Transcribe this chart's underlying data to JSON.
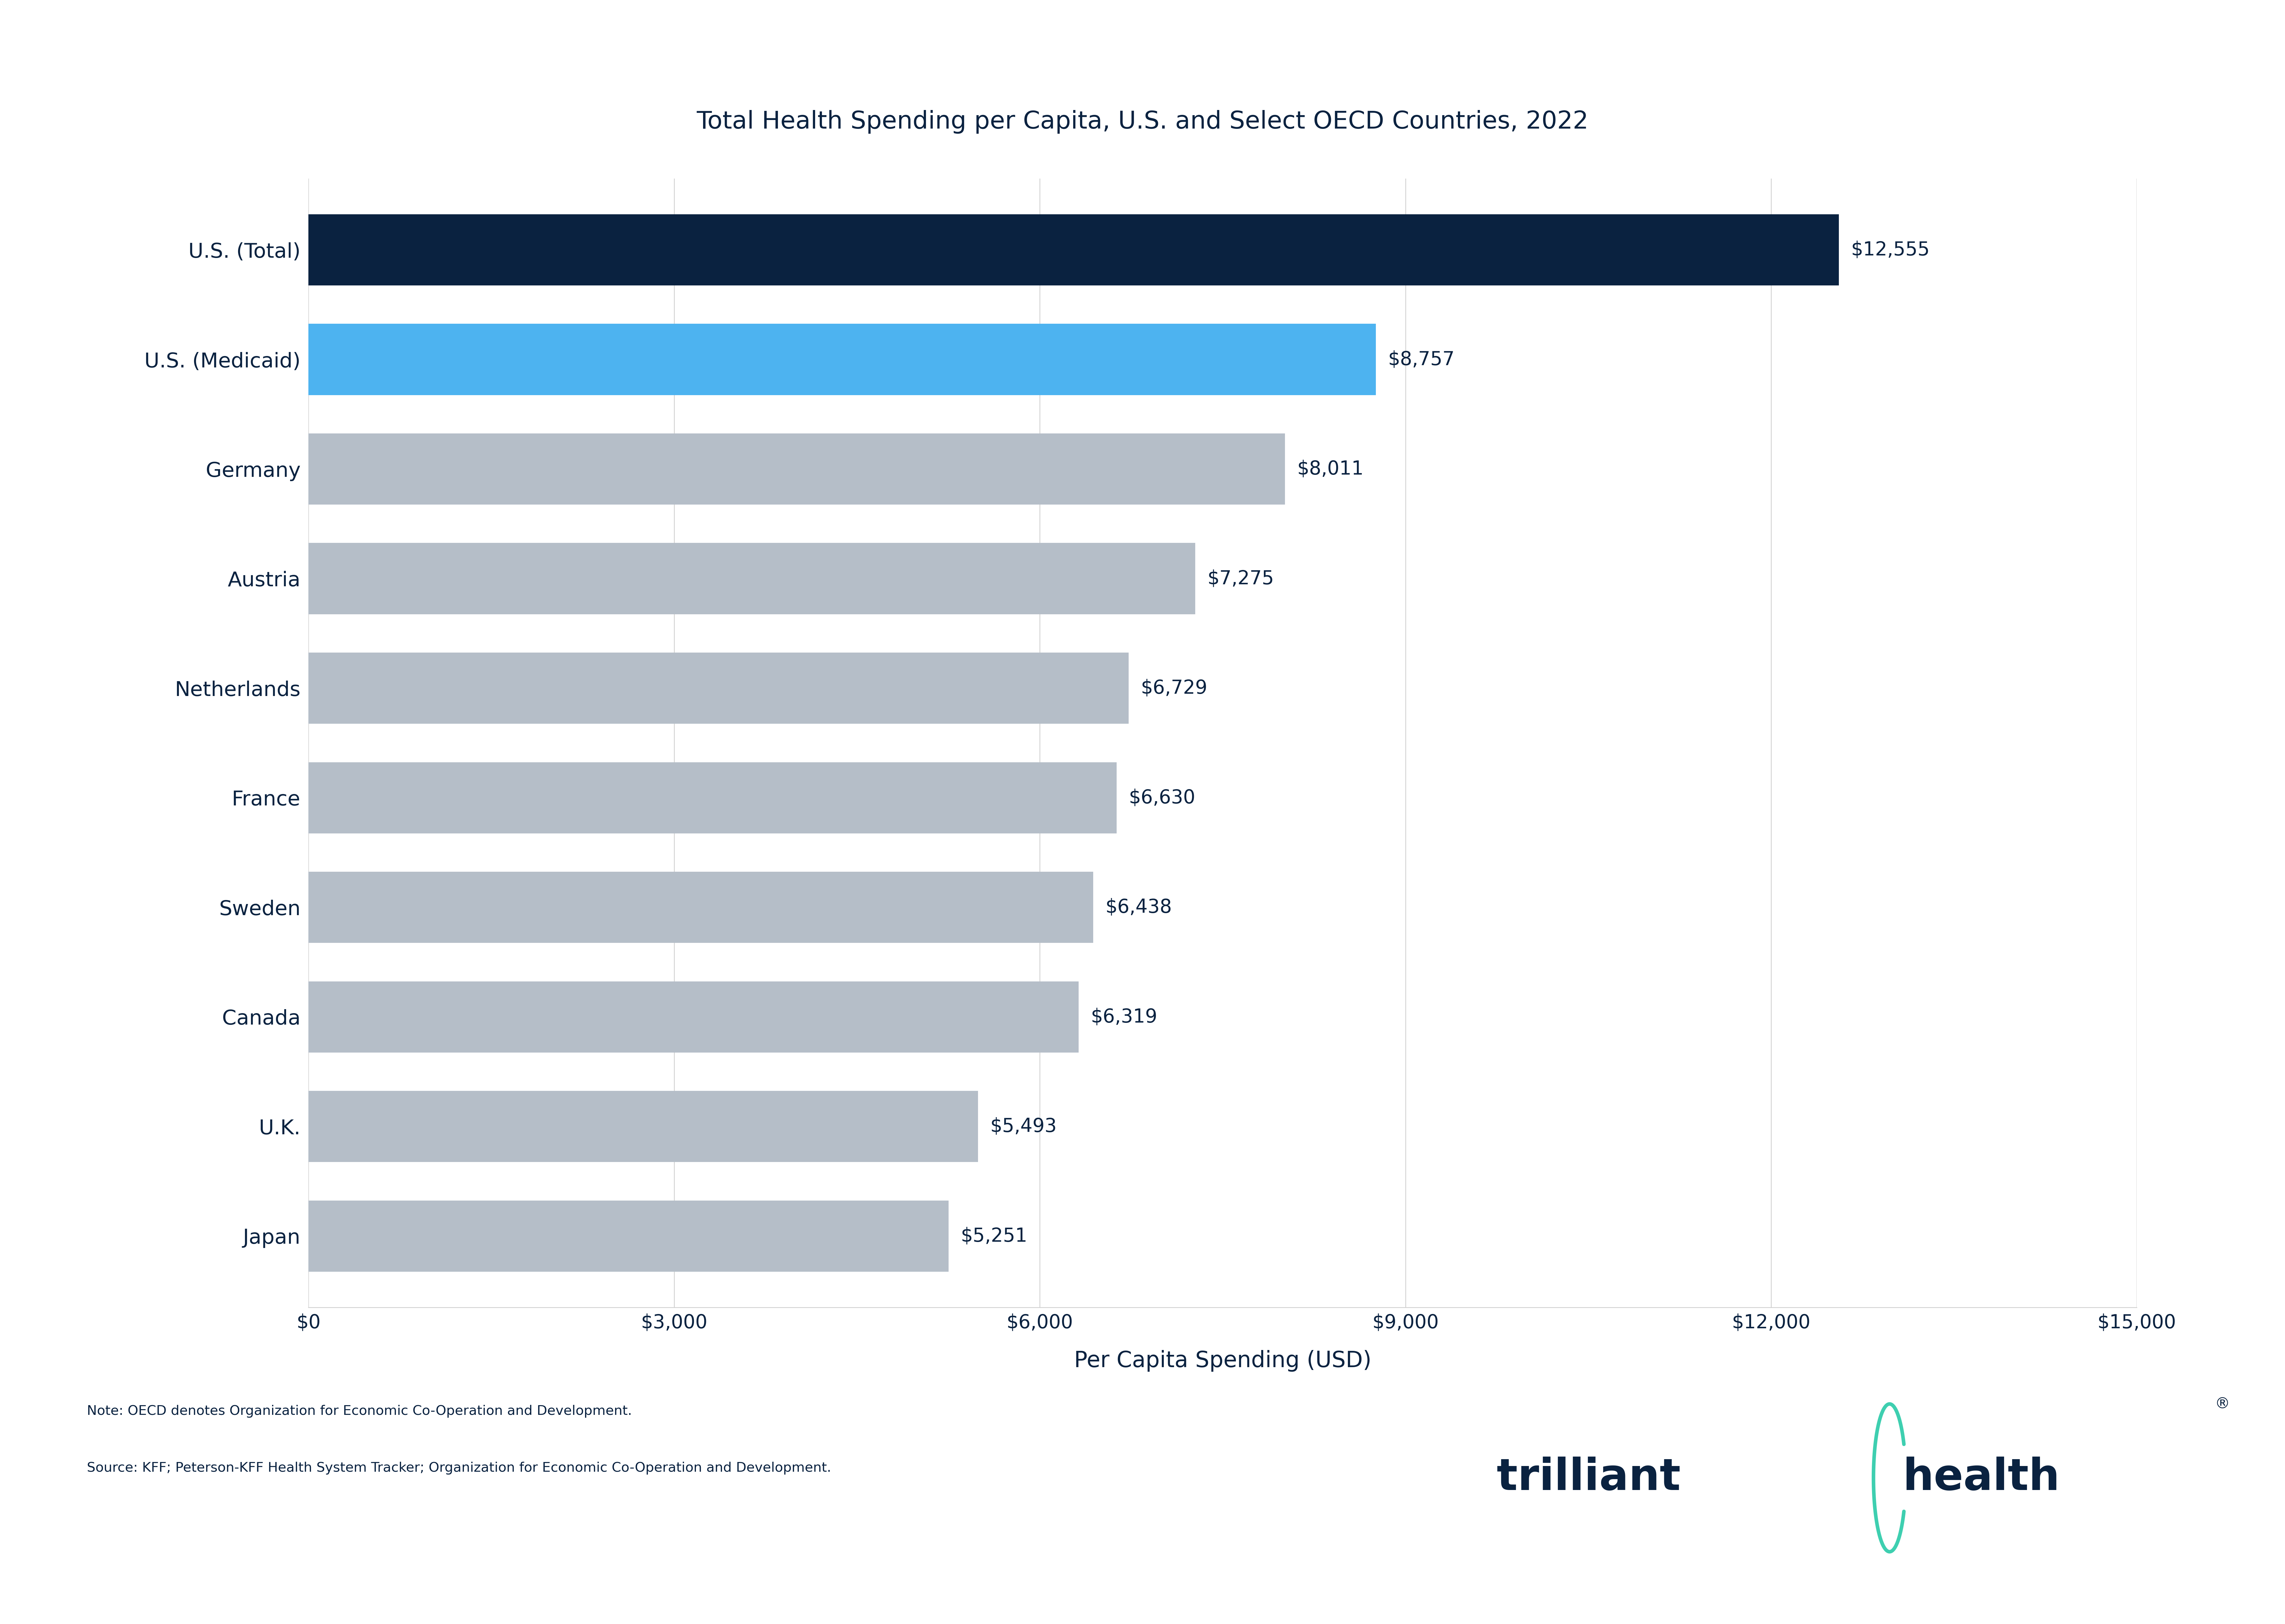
{
  "title": "Total Health Spending per Capita, U.S. and Select OECD Countries, 2022",
  "categories": [
    "U.S. (Total)",
    "U.S. (Medicaid)",
    "Germany",
    "Austria",
    "Netherlands",
    "France",
    "Sweden",
    "Canada",
    "U.K.",
    "Japan"
  ],
  "values": [
    12555,
    8757,
    8011,
    7275,
    6729,
    6630,
    6438,
    6319,
    5493,
    5251
  ],
  "bar_colors": [
    "#0a2240",
    "#4db3f0",
    "#b5bec8",
    "#b5bec8",
    "#b5bec8",
    "#b5bec8",
    "#b5bec8",
    "#b5bec8",
    "#b5bec8",
    "#b5bec8"
  ],
  "xlabel": "Per Capita Spending (USD)",
  "xlim": [
    0,
    15000
  ],
  "xticks": [
    0,
    3000,
    6000,
    9000,
    12000,
    15000
  ],
  "xtick_labels": [
    "$0",
    "$3,000",
    "$6,000",
    "$9,000",
    "$12,000",
    "$15,000"
  ],
  "title_fontsize": 62,
  "ytick_fontsize": 52,
  "xtick_fontsize": 48,
  "xlabel_fontsize": 56,
  "value_fontsize": 48,
  "note_fontsize": 34,
  "note_line1": "Note: OECD denotes Organization for Economic Co-Operation and Development.",
  "note_line2": "Source: KFF; Peterson-KFF Health System Tracker; Organization for Economic Co-Operation and Development.",
  "background_color": "#ffffff",
  "bar_height": 0.65,
  "text_color": "#0a2240",
  "grid_color": "#d0d0d0",
  "logo_color": "#0a2240",
  "logo_green": "#3ecfb0"
}
